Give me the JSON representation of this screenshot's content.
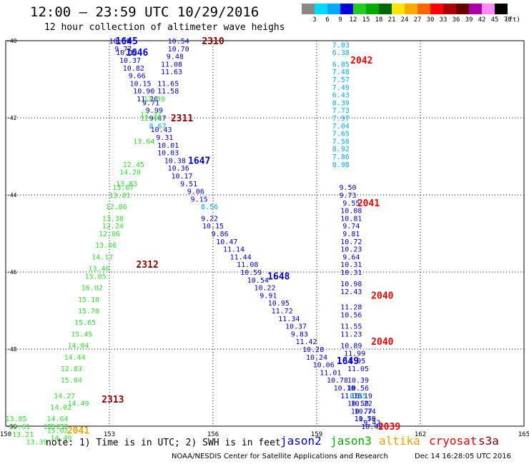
{
  "header": {
    "title": "12:00 – 23:59 UTC 10/29/2016",
    "subtitle": "12 hour collection of altimeter wave heighs"
  },
  "color_scale": {
    "unit": "(ft)",
    "labels": [
      "3",
      "6",
      "9",
      "12",
      "15",
      "18",
      "21",
      "24",
      "27",
      "30",
      "33",
      "36",
      "39",
      "42",
      "45",
      "70"
    ],
    "colors": [
      "#888888",
      "#00d8ff",
      "#00a8ff",
      "#0000dd",
      "#22cc22",
      "#00aa00",
      "#006600",
      "#ffe600",
      "#ffaa00",
      "#ff6600",
      "#ff0000",
      "#aa0000",
      "#660000",
      "#aa00aa",
      "#ff88ff",
      "#000000"
    ]
  },
  "chart_data": {
    "type": "scatter",
    "x_axis": {
      "ticks": [
        "150",
        "153",
        "156",
        "159",
        "162",
        "165"
      ],
      "range": [
        150,
        165
      ]
    },
    "y_axis": {
      "ticks": [
        "-40",
        "-42",
        "-44",
        "-46",
        "-48",
        "-50"
      ],
      "range": [
        -50,
        -40
      ]
    },
    "grid": true,
    "series": [
      {
        "name": "jason2",
        "color": "#0000cc",
        "track": "1645-1649",
        "points": [
          [
            153.3,
            -40.0,
            "10.39"
          ],
          [
            153.4,
            -40.2,
            "9.77"
          ],
          [
            153.5,
            -40.3,
            "10.12"
          ],
          [
            153.6,
            -40.5,
            "10.37"
          ],
          [
            153.7,
            -40.7,
            "10.82"
          ],
          [
            153.8,
            -40.9,
            "9.66"
          ],
          [
            153.9,
            -41.1,
            "10.15"
          ],
          [
            154.0,
            -41.3,
            "10.90"
          ],
          [
            154.1,
            -41.5,
            "11.20"
          ],
          [
            154.2,
            -41.6,
            "9.71"
          ],
          [
            154.3,
            -41.8,
            "9.99"
          ],
          [
            154.4,
            -42.0,
            "9.47"
          ],
          [
            154.5,
            -42.3,
            "10.43"
          ],
          [
            154.6,
            -42.5,
            "9.31"
          ],
          [
            154.7,
            -42.7,
            "10.01"
          ],
          [
            154.7,
            -42.9,
            "10.03"
          ],
          [
            154.9,
            -43.1,
            "10.38"
          ],
          [
            155.0,
            -43.3,
            "10.36"
          ],
          [
            155.1,
            -43.5,
            "10.17"
          ],
          [
            155.3,
            -43.7,
            "9.51"
          ],
          [
            155.5,
            -43.9,
            "9.06"
          ],
          [
            155.6,
            -44.1,
            "9.15"
          ],
          [
            155.9,
            -44.6,
            "9.22"
          ],
          [
            156.0,
            -44.8,
            "10.15"
          ],
          [
            156.2,
            -45.0,
            "9.86"
          ],
          [
            156.4,
            -45.2,
            "10.47"
          ],
          [
            156.6,
            -45.4,
            "11.14"
          ],
          [
            156.8,
            -45.6,
            "11.44"
          ],
          [
            157.0,
            -45.8,
            "11.08"
          ],
          [
            157.1,
            -46.0,
            "10.59"
          ],
          [
            157.3,
            -46.2,
            "10.54"
          ],
          [
            157.5,
            -46.4,
            "10.22"
          ],
          [
            157.6,
            -46.6,
            "9.91"
          ],
          [
            157.9,
            -46.8,
            "10.95"
          ],
          [
            158.0,
            -47.0,
            "11.72"
          ],
          [
            158.2,
            -47.2,
            "11.34"
          ],
          [
            158.4,
            -47.4,
            "10.37"
          ],
          [
            158.5,
            -47.6,
            "9.83"
          ],
          [
            158.7,
            -47.8,
            "11.42"
          ],
          [
            158.9,
            -48.0,
            "10.28"
          ],
          [
            159.0,
            -48.2,
            "10.24"
          ],
          [
            159.2,
            -48.4,
            "10.06"
          ],
          [
            159.4,
            -48.6,
            "11.01"
          ],
          [
            159.6,
            -48.8,
            "10.78"
          ],
          [
            159.8,
            -49.0,
            "10.10"
          ],
          [
            160.0,
            -49.2,
            "11.13"
          ],
          [
            160.2,
            -49.4,
            "10.50"
          ],
          [
            160.3,
            -49.6,
            "10.77"
          ],
          [
            160.4,
            -49.8,
            "10.58"
          ],
          [
            160.6,
            -50.0,
            "10.49"
          ]
        ]
      },
      {
        "name": "jason2",
        "color": "#0000cc",
        "track": "2041",
        "points": [
          [
            159.9,
            -43.8,
            "9.50"
          ],
          [
            159.9,
            -44.0,
            "9.73"
          ],
          [
            160.0,
            -44.2,
            "9.55"
          ],
          [
            160.0,
            -44.4,
            "10.08"
          ],
          [
            160.0,
            -44.6,
            "10.81"
          ],
          [
            160.0,
            -44.8,
            "9.74"
          ],
          [
            160.0,
            -45.0,
            "9.81"
          ],
          [
            160.0,
            -45.2,
            "10.72"
          ],
          [
            160.0,
            -45.4,
            "10.23"
          ],
          [
            160.0,
            -45.6,
            "9.64"
          ],
          [
            160.0,
            -45.8,
            "10.31"
          ],
          [
            160.0,
            -46.0,
            "10.31"
          ],
          [
            160.0,
            -46.3,
            "10.98"
          ],
          [
            160.0,
            -46.5,
            "12.43"
          ],
          [
            160.0,
            -46.9,
            "11.28"
          ],
          [
            160.0,
            -47.1,
            "10.56"
          ],
          [
            160.0,
            -47.4,
            "11.55"
          ],
          [
            160.0,
            -47.6,
            "11.23"
          ],
          [
            160.0,
            -47.9,
            "10.89"
          ],
          [
            160.1,
            -48.1,
            "11.99"
          ],
          [
            160.1,
            -48.3,
            "11.95"
          ],
          [
            160.2,
            -48.5,
            "11.05"
          ],
          [
            160.2,
            -48.8,
            "10.39"
          ],
          [
            160.2,
            -49.0,
            "10.56"
          ],
          [
            160.3,
            -49.2,
            "10.19"
          ],
          [
            160.3,
            -49.4,
            "10.22"
          ],
          [
            160.4,
            -49.6,
            "10.74"
          ],
          [
            160.4,
            -49.8,
            "11.79"
          ],
          [
            160.6,
            -49.9,
            "9.42"
          ]
        ]
      },
      {
        "name": "jason2",
        "color": "#0000cc",
        "track": "2310",
        "points": [
          [
            155.0,
            -40.0,
            "10.54"
          ],
          [
            155.0,
            -40.2,
            "10.70"
          ],
          [
            154.9,
            -40.4,
            "9.48"
          ],
          [
            154.8,
            -40.6,
            "11.08"
          ],
          [
            154.8,
            -40.8,
            "11.63"
          ],
          [
            154.7,
            -41.1,
            "11.65"
          ],
          [
            154.7,
            -41.3,
            "11.58"
          ]
        ]
      },
      {
        "name": "jason2",
        "color": "#00aaee",
        "track": "2042",
        "points": [
          [
            159.7,
            -40.1,
            "7.03"
          ],
          [
            159.7,
            -40.3,
            "6.38"
          ],
          [
            159.7,
            -40.6,
            "6.85"
          ],
          [
            159.7,
            -40.8,
            "7.48"
          ],
          [
            159.7,
            -41.0,
            "7.57"
          ],
          [
            159.7,
            -41.2,
            "7.49"
          ],
          [
            159.7,
            -41.4,
            "6.43"
          ],
          [
            159.7,
            -41.6,
            "8.39"
          ],
          [
            159.7,
            -41.8,
            "7.73"
          ],
          [
            159.7,
            -42.0,
            "7.97"
          ],
          [
            159.7,
            -42.2,
            "7.04"
          ],
          [
            159.7,
            -42.4,
            "7.65"
          ],
          [
            159.7,
            -42.6,
            "7.58"
          ],
          [
            159.7,
            -42.8,
            "8.92"
          ],
          [
            159.7,
            -43.0,
            "7.86"
          ],
          [
            159.7,
            -43.2,
            "8.98"
          ],
          [
            154.4,
            -42.2,
            "8.67"
          ],
          [
            155.9,
            -44.3,
            "8.56"
          ],
          [
            160.2,
            -49.2,
            "8.65"
          ]
        ]
      },
      {
        "name": "jason3",
        "color": "#33dd33",
        "track": "2311-2313",
        "points": [
          [
            154.3,
            -41.5,
            "13.09"
          ],
          [
            154.2,
            -41.9,
            "12.37"
          ],
          [
            154.2,
            -42.0,
            "12.40"
          ],
          [
            154.0,
            -42.6,
            "13.64"
          ],
          [
            153.7,
            -43.2,
            "12.45"
          ],
          [
            153.6,
            -43.4,
            "14.20"
          ],
          [
            153.5,
            -43.7,
            "13.83"
          ],
          [
            153.4,
            -43.8,
            "13.07"
          ],
          [
            153.3,
            -44.0,
            "13.81"
          ],
          [
            153.2,
            -44.3,
            "12.86"
          ],
          [
            153.1,
            -44.6,
            "13.38"
          ],
          [
            153.1,
            -44.8,
            "12.24"
          ],
          [
            153.0,
            -45.0,
            "12.06"
          ],
          [
            152.9,
            -45.3,
            "13.66"
          ],
          [
            152.8,
            -45.6,
            "14.17"
          ],
          [
            152.7,
            -45.9,
            "13.46"
          ],
          [
            152.6,
            -46.1,
            "15.05"
          ],
          [
            152.5,
            -46.4,
            "16.02"
          ],
          [
            152.4,
            -46.7,
            "15.10"
          ],
          [
            152.4,
            -47.0,
            "15.70"
          ],
          [
            152.3,
            -47.3,
            "15.65"
          ],
          [
            152.2,
            -47.6,
            "15.45"
          ],
          [
            152.1,
            -47.9,
            "14.04"
          ],
          [
            152.0,
            -48.2,
            "14.44"
          ],
          [
            151.9,
            -48.5,
            "12.83"
          ],
          [
            151.9,
            -48.8,
            "15.04"
          ],
          [
            151.7,
            -49.2,
            "14.27"
          ],
          [
            151.6,
            -49.5,
            "14.02"
          ],
          [
            151.5,
            -49.8,
            "14.64"
          ],
          [
            151.5,
            -50.0,
            "15.32"
          ]
        ]
      }
    ],
    "track_labels": [
      {
        "text": "1645",
        "lon": 153.5,
        "lat": -40.0,
        "color": "#0000cc"
      },
      {
        "text": "1646",
        "lon": 153.8,
        "lat": -40.3,
        "color": "#0000cc"
      },
      {
        "text": "2310",
        "lon": 156.0,
        "lat": -40.0,
        "color": "#880000"
      },
      {
        "text": "2042",
        "lon": 160.3,
        "lat": -40.5,
        "color": "#ee0000"
      },
      {
        "text": "2311",
        "lon": 155.1,
        "lat": -42.0,
        "color": "#880000"
      },
      {
        "text": "1647",
        "lon": 155.6,
        "lat": -43.1,
        "color": "#0000cc"
      },
      {
        "text": "2041",
        "lon": 160.5,
        "lat": -44.2,
        "color": "#ee0000"
      },
      {
        "text": "2312",
        "lon": 154.1,
        "lat": -45.8,
        "color": "#880000"
      },
      {
        "text": "1648",
        "lon": 157.9,
        "lat": -46.1,
        "color": "#0000cc"
      },
      {
        "text": "2040",
        "lon": 160.9,
        "lat": -46.6,
        "color": "#ee0000"
      },
      {
        "text": "2040",
        "lon": 160.9,
        "lat": -47.8,
        "color": "#ee0000"
      },
      {
        "text": "1649",
        "lon": 159.9,
        "lat": -48.3,
        "color": "#0000cc"
      },
      {
        "text": "2313",
        "lon": 153.1,
        "lat": -49.3,
        "color": "#880000"
      },
      {
        "text": "2041",
        "lon": 152.1,
        "lat": -50.1,
        "color": "#ddaa00"
      },
      {
        "text": "2039",
        "lon": 161.1,
        "lat": -50.0,
        "color": "#ee0000"
      }
    ],
    "stray_values": [
      {
        "text": "13.85",
        "lon": 150.3,
        "lat": -49.8,
        "color": "#33dd33"
      },
      {
        "text": "13.61",
        "lon": 150.4,
        "lat": -50.0,
        "color": "#33dd33"
      },
      {
        "text": "13.21",
        "lon": 150.5,
        "lat": -50.2,
        "color": "#33dd33"
      },
      {
        "text": "13.39",
        "lon": 150.9,
        "lat": -50.4,
        "color": "#33dd33"
      },
      {
        "text": "13.21",
        "lon": 151.4,
        "lat": -50.0,
        "color": "#33dd33"
      },
      {
        "text": "15.02",
        "lon": 151.5,
        "lat": -50.1,
        "color": "#33dd33"
      },
      {
        "text": "14.49",
        "lon": 151.6,
        "lat": -50.3,
        "color": "#33dd33"
      },
      {
        "text": "14.49",
        "lon": 152.1,
        "lat": -49.4,
        "color": "#33dd33"
      }
    ]
  },
  "footer": {
    "note": "note: 1) Time is in UTC; 2) SWH is in feet",
    "satellites": [
      {
        "name": "jason2",
        "color": "#0000cc"
      },
      {
        "name": "jason3",
        "color": "#00aa00"
      },
      {
        "name": "altika",
        "color": "#ff9900"
      },
      {
        "name": "cryosat",
        "color": "#ee0000"
      },
      {
        "name": "s3a",
        "color": "#880000"
      }
    ],
    "credit": "NOAA/NESDIS Center for Satellite Applications and Research",
    "timestamp": "Dec 14 16:28:05 UTC 2016"
  }
}
